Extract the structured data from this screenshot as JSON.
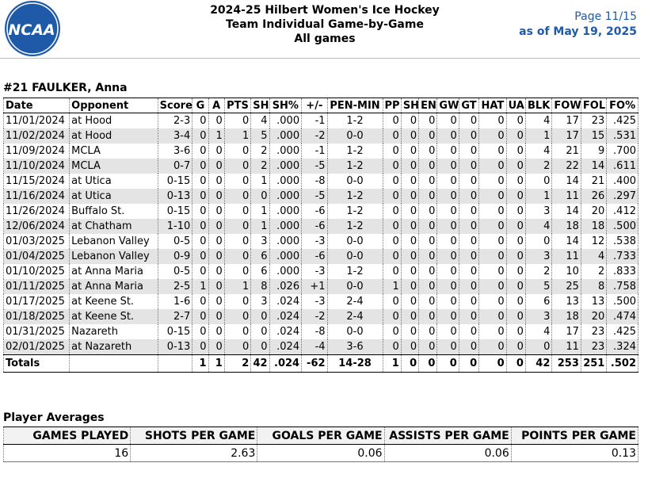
{
  "logo": {
    "text": "NCAA",
    "color": "#1f5aa8"
  },
  "header": {
    "title": "2024-25 Hilbert Women's Ice Hockey",
    "subtitle": "Team Individual Game-by-Game",
    "filter": "All games",
    "page": "Page 11/15",
    "as_of": "as of May 19, 2025"
  },
  "player": "#21 FAULKER, Anna",
  "columns": [
    "Date",
    "Opponent",
    "Score",
    "G",
    "A",
    "PTS",
    "SH",
    "SH%",
    "+/-",
    "PEN-MIN",
    "PP",
    "SH",
    "EN",
    "GW",
    "GT",
    "HAT",
    "UA",
    "BLK",
    "FOW",
    "FOL",
    "FO%"
  ],
  "games": [
    [
      "11/01/2024",
      "at Hood",
      "2-3",
      "0",
      "0",
      "0",
      "4",
      ".000",
      "-1",
      "1-2",
      "0",
      "0",
      "0",
      "0",
      "0",
      "0",
      "0",
      "4",
      "17",
      "23",
      ".425"
    ],
    [
      "11/02/2024",
      "at Hood",
      "3-4",
      "0",
      "1",
      "1",
      "5",
      ".000",
      "-2",
      "0-0",
      "0",
      "0",
      "0",
      "0",
      "0",
      "0",
      "0",
      "1",
      "17",
      "15",
      ".531"
    ],
    [
      "11/09/2024",
      "MCLA",
      "3-6",
      "0",
      "0",
      "0",
      "2",
      ".000",
      "-1",
      "1-2",
      "0",
      "0",
      "0",
      "0",
      "0",
      "0",
      "0",
      "4",
      "21",
      "9",
      ".700"
    ],
    [
      "11/10/2024",
      "MCLA",
      "0-7",
      "0",
      "0",
      "0",
      "2",
      ".000",
      "-5",
      "1-2",
      "0",
      "0",
      "0",
      "0",
      "0",
      "0",
      "0",
      "2",
      "22",
      "14",
      ".611"
    ],
    [
      "11/15/2024",
      "at Utica",
      "0-15",
      "0",
      "0",
      "0",
      "1",
      ".000",
      "-8",
      "0-0",
      "0",
      "0",
      "0",
      "0",
      "0",
      "0",
      "0",
      "0",
      "14",
      "21",
      ".400"
    ],
    [
      "11/16/2024",
      "at Utica",
      "0-13",
      "0",
      "0",
      "0",
      "0",
      ".000",
      "-5",
      "1-2",
      "0",
      "0",
      "0",
      "0",
      "0",
      "0",
      "0",
      "1",
      "11",
      "26",
      ".297"
    ],
    [
      "11/26/2024",
      "Buffalo St.",
      "0-15",
      "0",
      "0",
      "0",
      "1",
      ".000",
      "-6",
      "1-2",
      "0",
      "0",
      "0",
      "0",
      "0",
      "0",
      "0",
      "3",
      "14",
      "20",
      ".412"
    ],
    [
      "12/06/2024",
      "at Chatham",
      "1-10",
      "0",
      "0",
      "0",
      "1",
      ".000",
      "-6",
      "1-2",
      "0",
      "0",
      "0",
      "0",
      "0",
      "0",
      "0",
      "4",
      "18",
      "18",
      ".500"
    ],
    [
      "01/03/2025",
      "Lebanon Valley",
      "0-5",
      "0",
      "0",
      "0",
      "3",
      ".000",
      "-3",
      "0-0",
      "0",
      "0",
      "0",
      "0",
      "0",
      "0",
      "0",
      "0",
      "14",
      "12",
      ".538"
    ],
    [
      "01/04/2025",
      "Lebanon Valley",
      "0-9",
      "0",
      "0",
      "0",
      "6",
      ".000",
      "-6",
      "0-0",
      "0",
      "0",
      "0",
      "0",
      "0",
      "0",
      "0",
      "3",
      "11",
      "4",
      ".733"
    ],
    [
      "01/10/2025",
      "at Anna Maria",
      "0-5",
      "0",
      "0",
      "0",
      "6",
      ".000",
      "-3",
      "1-2",
      "0",
      "0",
      "0",
      "0",
      "0",
      "0",
      "0",
      "2",
      "10",
      "2",
      ".833"
    ],
    [
      "01/11/2025",
      "at Anna Maria",
      "2-5",
      "1",
      "0",
      "1",
      "8",
      ".026",
      "+1",
      "0-0",
      "1",
      "0",
      "0",
      "0",
      "0",
      "0",
      "0",
      "5",
      "25",
      "8",
      ".758"
    ],
    [
      "01/17/2025",
      "at Keene St.",
      "1-6",
      "0",
      "0",
      "0",
      "3",
      ".024",
      "-3",
      "2-4",
      "0",
      "0",
      "0",
      "0",
      "0",
      "0",
      "0",
      "6",
      "13",
      "13",
      ".500"
    ],
    [
      "01/18/2025",
      "at Keene St.",
      "2-7",
      "0",
      "0",
      "0",
      "0",
      ".024",
      "-2",
      "2-4",
      "0",
      "0",
      "0",
      "0",
      "0",
      "0",
      "0",
      "3",
      "18",
      "20",
      ".474"
    ],
    [
      "01/31/2025",
      "Nazareth",
      "0-15",
      "0",
      "0",
      "0",
      "0",
      ".024",
      "-8",
      "0-0",
      "0",
      "0",
      "0",
      "0",
      "0",
      "0",
      "0",
      "4",
      "17",
      "23",
      ".425"
    ],
    [
      "02/01/2025",
      "at Nazareth",
      "0-13",
      "0",
      "0",
      "0",
      "0",
      ".024",
      "-4",
      "3-6",
      "0",
      "0",
      "0",
      "0",
      "0",
      "0",
      "0",
      "0",
      "11",
      "23",
      ".324"
    ]
  ],
  "totals": [
    "Totals",
    "",
    "",
    "1",
    "1",
    "2",
    "42",
    ".024",
    "-62",
    "14-28",
    "1",
    "0",
    "0",
    "0",
    "0",
    "0",
    "0",
    "42",
    "253",
    "251",
    ".502"
  ],
  "averages": {
    "title": "Player Averages",
    "headers": [
      "GAMES PLAYED",
      "SHOTS PER GAME",
      "GOALS PER GAME",
      "ASSISTS PER GAME",
      "POINTS PER GAME"
    ],
    "values": [
      "16",
      "2.63",
      "0.06",
      "0.06",
      "0.13"
    ]
  }
}
